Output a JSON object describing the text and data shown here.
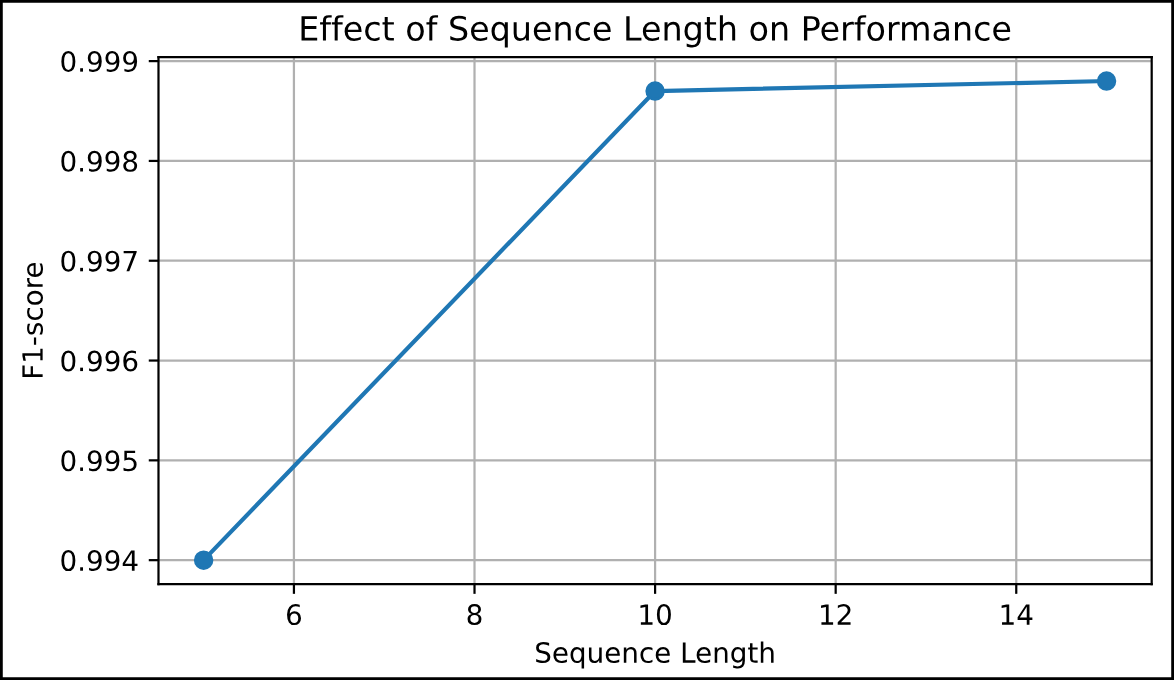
{
  "chart_data": {
    "type": "line",
    "title": "Effect of Sequence Length on Performance",
    "xlabel": "Sequence Length",
    "ylabel": "F1-score",
    "x": [
      5,
      10,
      15
    ],
    "series": [
      {
        "color": "#1f77b4",
        "values": [
          0.994,
          0.9987,
          0.9988
        ]
      }
    ],
    "xlim": [
      4.5,
      15.5
    ],
    "xticks": [
      6,
      8,
      10,
      12,
      14
    ],
    "ylim": [
      0.99376,
      0.99904
    ],
    "yticks": [
      0.994,
      0.995,
      0.996,
      0.997,
      0.998,
      0.999
    ],
    "grid": true,
    "marker": "circle",
    "line_style": "solid"
  }
}
